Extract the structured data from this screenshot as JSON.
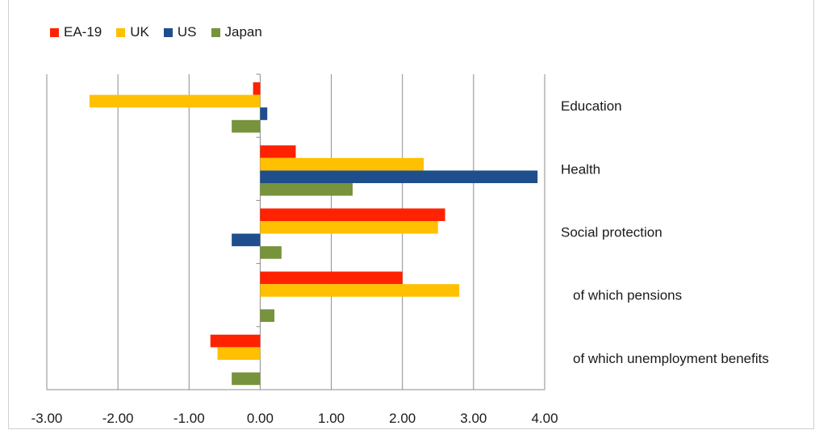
{
  "chart_data": {
    "type": "bar",
    "orientation": "horizontal",
    "categories": [
      "Education",
      "Health",
      "Social protection",
      "of which pensions",
      "of which unemployment benefits"
    ],
    "series": [
      {
        "name": "EA-19",
        "color": "#ff2200",
        "values": [
          -0.1,
          0.5,
          2.6,
          2.0,
          -0.7
        ]
      },
      {
        "name": "UK",
        "color": "#ffc000",
        "values": [
          -2.4,
          2.3,
          2.5,
          2.8,
          -0.6
        ]
      },
      {
        "name": "US",
        "color": "#1f4e8c",
        "values": [
          0.1,
          3.9,
          -0.4,
          null,
          null
        ]
      },
      {
        "name": "Japan",
        "color": "#77933c",
        "values": [
          -0.4,
          1.3,
          0.3,
          0.2,
          -0.4
        ]
      }
    ],
    "xlim": [
      -3,
      4
    ],
    "xticks": [
      "-3.00",
      "-2.00",
      "-1.00",
      "0.00",
      "1.00",
      "2.00",
      "3.00",
      "4.00"
    ],
    "grid": true,
    "legend_position": "top-left"
  }
}
